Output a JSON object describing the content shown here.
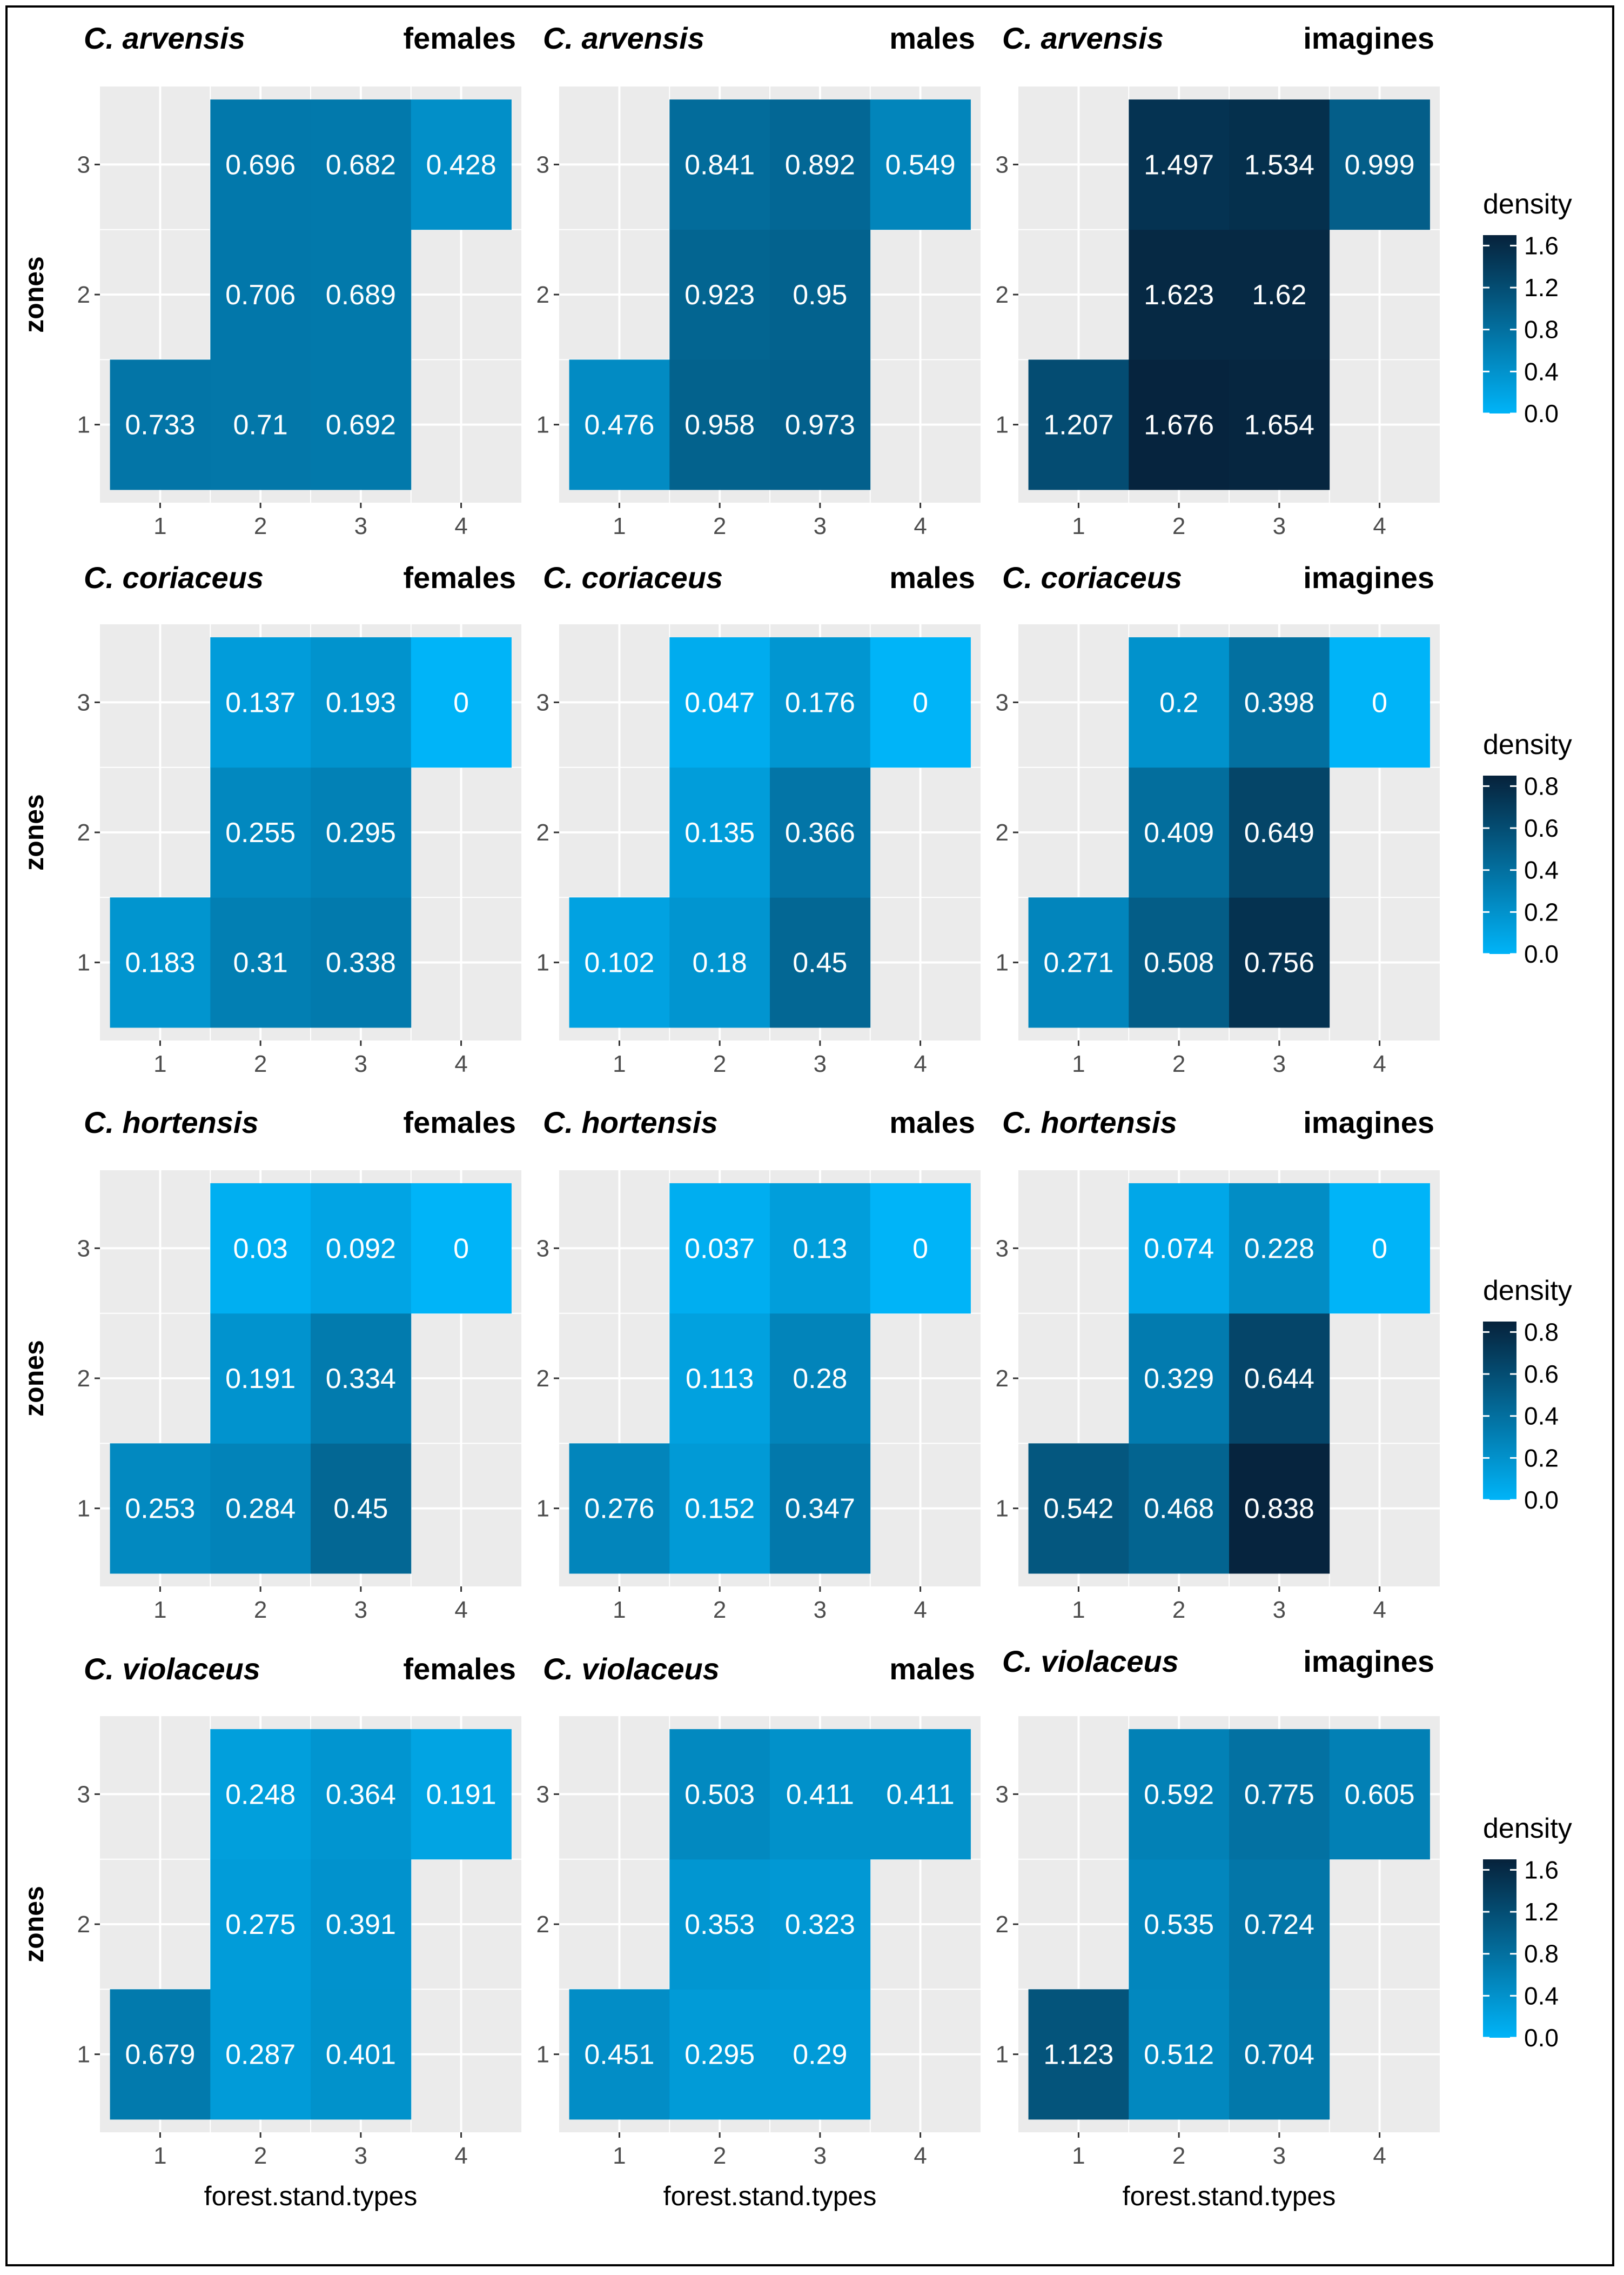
{
  "colors": {
    "low": "#00b4f8",
    "high": "#06223b",
    "panel_bg": "#ebebeb",
    "grid": "#ffffff",
    "frame": "#000000"
  },
  "chart_data": {
    "type": "heatmap",
    "xlabel": "forest.stand.types",
    "ylabel": "zones",
    "x_ticks": [
      "1",
      "2",
      "3",
      "4"
    ],
    "y_ticks": [
      "1",
      "2",
      "3"
    ],
    "legend_title": "density",
    "legend_placement": "right",
    "grid": true,
    "species": [
      "C. arvensis",
      "C. coriaceus",
      "C. hortensis",
      "C. violaceus"
    ],
    "groups": [
      "females",
      "males",
      "imagines"
    ],
    "legends": [
      {
        "row": 0,
        "range": [
          0,
          1.7
        ],
        "ticks": [
          "0.0",
          "0.4",
          "0.8",
          "1.2",
          "1.6"
        ]
      },
      {
        "row": 1,
        "range": [
          0,
          0.85
        ],
        "ticks": [
          "0.0",
          "0.2",
          "0.4",
          "0.6",
          "0.8"
        ]
      },
      {
        "row": 2,
        "range": [
          0,
          0.85
        ],
        "ticks": [
          "0.0",
          "0.2",
          "0.4",
          "0.6",
          "0.8"
        ]
      },
      {
        "row": 3,
        "range": [
          0,
          1.7
        ],
        "ticks": [
          "0.0",
          "0.4",
          "0.8",
          "1.2",
          "1.6"
        ]
      }
    ],
    "panels": [
      {
        "species": "C. arvensis",
        "group": "females",
        "cells": [
          {
            "x": 1,
            "y": 1,
            "label": "0.733"
          },
          {
            "x": 2,
            "y": 1,
            "label": "0.71"
          },
          {
            "x": 3,
            "y": 1,
            "label": "0.692"
          },
          {
            "x": 2,
            "y": 2,
            "label": "0.706"
          },
          {
            "x": 3,
            "y": 2,
            "label": "0.689"
          },
          {
            "x": 2,
            "y": 3,
            "label": "0.696"
          },
          {
            "x": 3,
            "y": 3,
            "label": "0.682"
          },
          {
            "x": 4,
            "y": 3,
            "label": "0.428"
          }
        ]
      },
      {
        "species": "C. arvensis",
        "group": "males",
        "cells": [
          {
            "x": 1,
            "y": 1,
            "label": "0.476"
          },
          {
            "x": 2,
            "y": 1,
            "label": "0.958"
          },
          {
            "x": 3,
            "y": 1,
            "label": "0.973"
          },
          {
            "x": 2,
            "y": 2,
            "label": "0.923"
          },
          {
            "x": 3,
            "y": 2,
            "label": "0.95"
          },
          {
            "x": 2,
            "y": 3,
            "label": "0.841"
          },
          {
            "x": 3,
            "y": 3,
            "label": "0.892"
          },
          {
            "x": 4,
            "y": 3,
            "label": "0.549"
          }
        ]
      },
      {
        "species": "C. arvensis",
        "group": "imagines",
        "cells": [
          {
            "x": 1,
            "y": 1,
            "label": "1.207"
          },
          {
            "x": 2,
            "y": 1,
            "label": "1.676"
          },
          {
            "x": 3,
            "y": 1,
            "label": "1.654"
          },
          {
            "x": 2,
            "y": 2,
            "label": "1.623"
          },
          {
            "x": 3,
            "y": 2,
            "label": "1.62"
          },
          {
            "x": 2,
            "y": 3,
            "label": "1.497"
          },
          {
            "x": 3,
            "y": 3,
            "label": "1.534"
          },
          {
            "x": 4,
            "y": 3,
            "label": "0.999"
          }
        ]
      },
      {
        "species": "C. coriaceus",
        "group": "females",
        "cells": [
          {
            "x": 1,
            "y": 1,
            "label": "0.183"
          },
          {
            "x": 2,
            "y": 1,
            "label": "0.31"
          },
          {
            "x": 3,
            "y": 1,
            "label": "0.338"
          },
          {
            "x": 2,
            "y": 2,
            "label": "0.255"
          },
          {
            "x": 3,
            "y": 2,
            "label": "0.295"
          },
          {
            "x": 2,
            "y": 3,
            "label": "0.137"
          },
          {
            "x": 3,
            "y": 3,
            "label": "0.193"
          },
          {
            "x": 4,
            "y": 3,
            "label": "0"
          }
        ]
      },
      {
        "species": "C. coriaceus",
        "group": "males",
        "cells": [
          {
            "x": 1,
            "y": 1,
            "label": "0.102"
          },
          {
            "x": 2,
            "y": 1,
            "label": "0.18"
          },
          {
            "x": 3,
            "y": 1,
            "label": "0.45"
          },
          {
            "x": 2,
            "y": 2,
            "label": "0.135"
          },
          {
            "x": 3,
            "y": 2,
            "label": "0.366"
          },
          {
            "x": 2,
            "y": 3,
            "label": "0.047"
          },
          {
            "x": 3,
            "y": 3,
            "label": "0.176"
          },
          {
            "x": 4,
            "y": 3,
            "label": "0"
          }
        ]
      },
      {
        "species": "C. coriaceus",
        "group": "imagines",
        "cells": [
          {
            "x": 1,
            "y": 1,
            "label": "0.271"
          },
          {
            "x": 2,
            "y": 1,
            "label": "0.508"
          },
          {
            "x": 3,
            "y": 1,
            "label": "0.756"
          },
          {
            "x": 2,
            "y": 2,
            "label": "0.409"
          },
          {
            "x": 3,
            "y": 2,
            "label": "0.649"
          },
          {
            "x": 2,
            "y": 3,
            "label": "0.2"
          },
          {
            "x": 3,
            "y": 3,
            "label": "0.398"
          },
          {
            "x": 4,
            "y": 3,
            "label": "0"
          }
        ]
      },
      {
        "species": "C. hortensis",
        "group": "females",
        "cells": [
          {
            "x": 1,
            "y": 1,
            "label": "0.253"
          },
          {
            "x": 2,
            "y": 1,
            "label": "0.284"
          },
          {
            "x": 3,
            "y": 1,
            "label": "0.45"
          },
          {
            "x": 2,
            "y": 2,
            "label": "0.191"
          },
          {
            "x": 3,
            "y": 2,
            "label": "0.334"
          },
          {
            "x": 2,
            "y": 3,
            "label": "0.03"
          },
          {
            "x": 3,
            "y": 3,
            "label": "0.092"
          },
          {
            "x": 4,
            "y": 3,
            "label": "0"
          }
        ]
      },
      {
        "species": "C. hortensis",
        "group": "males",
        "cells": [
          {
            "x": 1,
            "y": 1,
            "label": "0.276"
          },
          {
            "x": 2,
            "y": 1,
            "label": "0.152"
          },
          {
            "x": 3,
            "y": 1,
            "label": "0.347"
          },
          {
            "x": 2,
            "y": 2,
            "label": "0.113"
          },
          {
            "x": 3,
            "y": 2,
            "label": "0.28"
          },
          {
            "x": 2,
            "y": 3,
            "label": "0.037"
          },
          {
            "x": 3,
            "y": 3,
            "label": "0.13"
          },
          {
            "x": 4,
            "y": 3,
            "label": "0"
          }
        ]
      },
      {
        "species": "C. hortensis",
        "group": "imagines",
        "cells": [
          {
            "x": 1,
            "y": 1,
            "label": "0.542"
          },
          {
            "x": 2,
            "y": 1,
            "label": "0.468"
          },
          {
            "x": 3,
            "y": 1,
            "label": "0.838"
          },
          {
            "x": 2,
            "y": 2,
            "label": "0.329"
          },
          {
            "x": 3,
            "y": 2,
            "label": "0.644"
          },
          {
            "x": 2,
            "y": 3,
            "label": "0.074"
          },
          {
            "x": 3,
            "y": 3,
            "label": "0.228"
          },
          {
            "x": 4,
            "y": 3,
            "label": "0"
          }
        ]
      },
      {
        "species": "C. violaceus",
        "group": "females",
        "cells": [
          {
            "x": 1,
            "y": 1,
            "label": "0.679"
          },
          {
            "x": 2,
            "y": 1,
            "label": "0.287"
          },
          {
            "x": 3,
            "y": 1,
            "label": "0.401"
          },
          {
            "x": 2,
            "y": 2,
            "label": "0.275"
          },
          {
            "x": 3,
            "y": 2,
            "label": "0.391"
          },
          {
            "x": 2,
            "y": 3,
            "label": "0.248"
          },
          {
            "x": 3,
            "y": 3,
            "label": "0.364"
          },
          {
            "x": 4,
            "y": 3,
            "label": "0.191"
          }
        ]
      },
      {
        "species": "C. violaceus",
        "group": "males",
        "cells": [
          {
            "x": 1,
            "y": 1,
            "label": "0.451"
          },
          {
            "x": 2,
            "y": 1,
            "label": "0.295"
          },
          {
            "x": 3,
            "y": 1,
            "label": "0.29"
          },
          {
            "x": 2,
            "y": 2,
            "label": "0.353"
          },
          {
            "x": 3,
            "y": 2,
            "label": "0.323"
          },
          {
            "x": 2,
            "y": 3,
            "label": "0.503"
          },
          {
            "x": 3,
            "y": 3,
            "label": "0.411"
          },
          {
            "x": 4,
            "y": 3,
            "label": "0.411"
          }
        ]
      },
      {
        "species": "C. violaceus",
        "group": "imagines",
        "cells": [
          {
            "x": 1,
            "y": 1,
            "label": "1.123"
          },
          {
            "x": 2,
            "y": 1,
            "label": "0.512"
          },
          {
            "x": 3,
            "y": 1,
            "label": "0.704"
          },
          {
            "x": 2,
            "y": 2,
            "label": "0.535"
          },
          {
            "x": 3,
            "y": 2,
            "label": "0.724"
          },
          {
            "x": 2,
            "y": 3,
            "label": "0.592"
          },
          {
            "x": 3,
            "y": 3,
            "label": "0.775"
          },
          {
            "x": 4,
            "y": 3,
            "label": "0.605"
          }
        ]
      }
    ]
  }
}
